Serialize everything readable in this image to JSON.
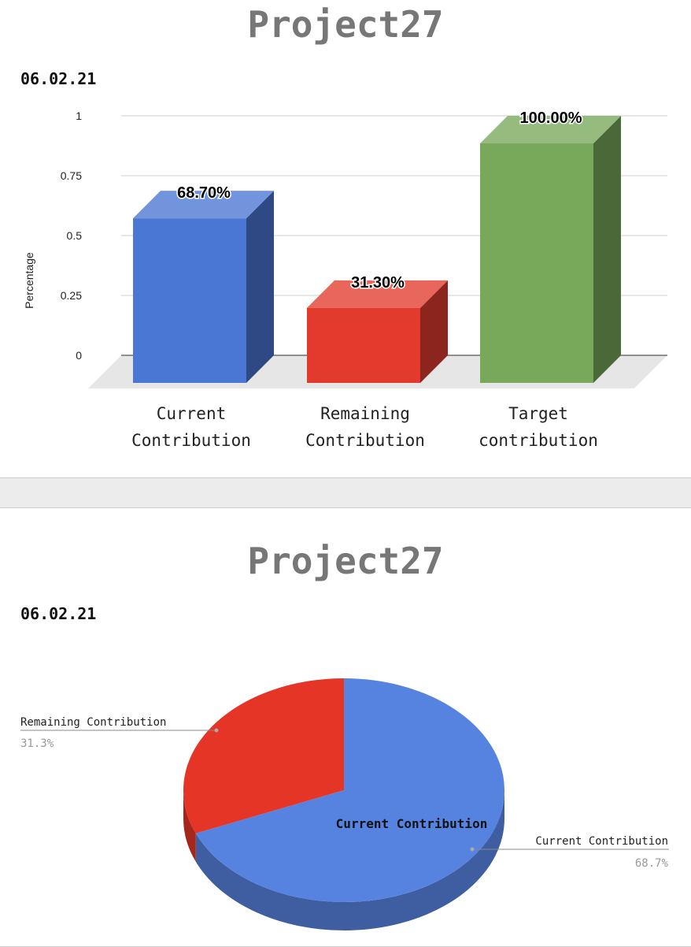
{
  "bar_panel": {
    "title": "Project27",
    "date": "06.02.21"
  },
  "pie_panel": {
    "title": "Project27",
    "date": "06.02.21"
  },
  "colors": {
    "current": "#4a76d4",
    "remaining": "#e23b2e",
    "target": "#78a85a",
    "pie_current": "#5683e0",
    "pie_remaining": "#e53526"
  },
  "chart_data": [
    {
      "type": "bar",
      "categories": [
        "Current\nContribution",
        "Remaining\nContribution",
        "Target\ncontribution"
      ],
      "values": [
        0.687,
        0.313,
        1.0
      ],
      "data_labels": [
        "68.70%",
        "31.30%",
        "100.00%"
      ],
      "ylabel": "Percentage",
      "ylim": [
        0,
        1
      ],
      "yticks": [
        "0",
        "0.25",
        "0.5",
        "0.75",
        "1"
      ],
      "grid": true
    },
    {
      "type": "pie",
      "labels": [
        "Current Contribution",
        "Remaining Contribution"
      ],
      "values": [
        68.7,
        31.3
      ],
      "percent_labels": [
        "68.7%",
        "31.3%"
      ],
      "inside_label": "Current Contribution"
    }
  ]
}
